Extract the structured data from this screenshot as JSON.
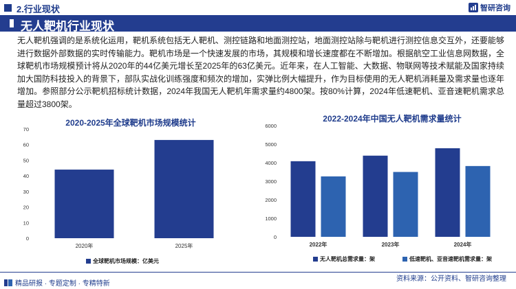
{
  "header": {
    "section": "2.行业现状",
    "logo_text": "智研咨询",
    "title": "无人靶机行业现状"
  },
  "paragraph": "无人靶机强调的是系统化运用，靶机系统包括无人靶机、测控链路和地面测控站，地面测控站除与靶机进行测控信息交互外，还要能够进行数据外部数据的实时传输能力。靶机市场是一个快速发展的市场，其规模和增长速度都在不断增加。根据航空工业信息网数据，全球靶机市场规模预计将从2020年的44亿美元增长至2025年的63亿美元。近年来，在人工智能、大数据、物联网等技术赋能及国家持续加大国防科技投入的背景下，部队实战化训练强度和频次的增加，实弹比例大幅提升，作为目标使用的无人靶机消耗量及需求量也逐年增加。参照部分公示靶机招标统计数据，2024年我国无人靶机年需求量约4800架。按80%计算，2024年低速靶机、亚音速靶机需求总量超过3800架。",
  "colors": {
    "primary": "#233d8f",
    "secondary": "#2d63b0"
  },
  "chart_data": [
    {
      "type": "bar",
      "title": "2020-2025年全球靶机市场规模统计",
      "categories": [
        "2020年",
        "2025年"
      ],
      "series": [
        {
          "name": "全球靶机市场规模：亿美元",
          "values": [
            44,
            63
          ],
          "color": "#233d8f"
        }
      ],
      "ylim": [
        0,
        70
      ],
      "yticks": [
        0,
        10,
        20,
        30,
        40,
        50,
        60,
        70
      ],
      "legend": "bottom"
    },
    {
      "type": "bar",
      "title": "2022-2024年中国无人靶机需求量统计",
      "categories": [
        "2022年",
        "2023年",
        "2024年"
      ],
      "series": [
        {
          "name": "无人靶机总需求量：架",
          "values": [
            4080,
            4380,
            4780
          ],
          "color": "#233d8f"
        },
        {
          "name": "低速靶机、亚音速靶机需求量：架",
          "values": [
            3260,
            3500,
            3820
          ],
          "color": "#2d63b0"
        }
      ],
      "ylim": [
        0,
        6000
      ],
      "yticks": [
        0,
        1000,
        2000,
        3000,
        4000,
        5000,
        6000
      ],
      "legend": "bottom"
    }
  ],
  "footer": {
    "left": "精品研报 · 专题定制 · 专精特新",
    "right": "资料来源：公开资料、智研咨询整理"
  }
}
